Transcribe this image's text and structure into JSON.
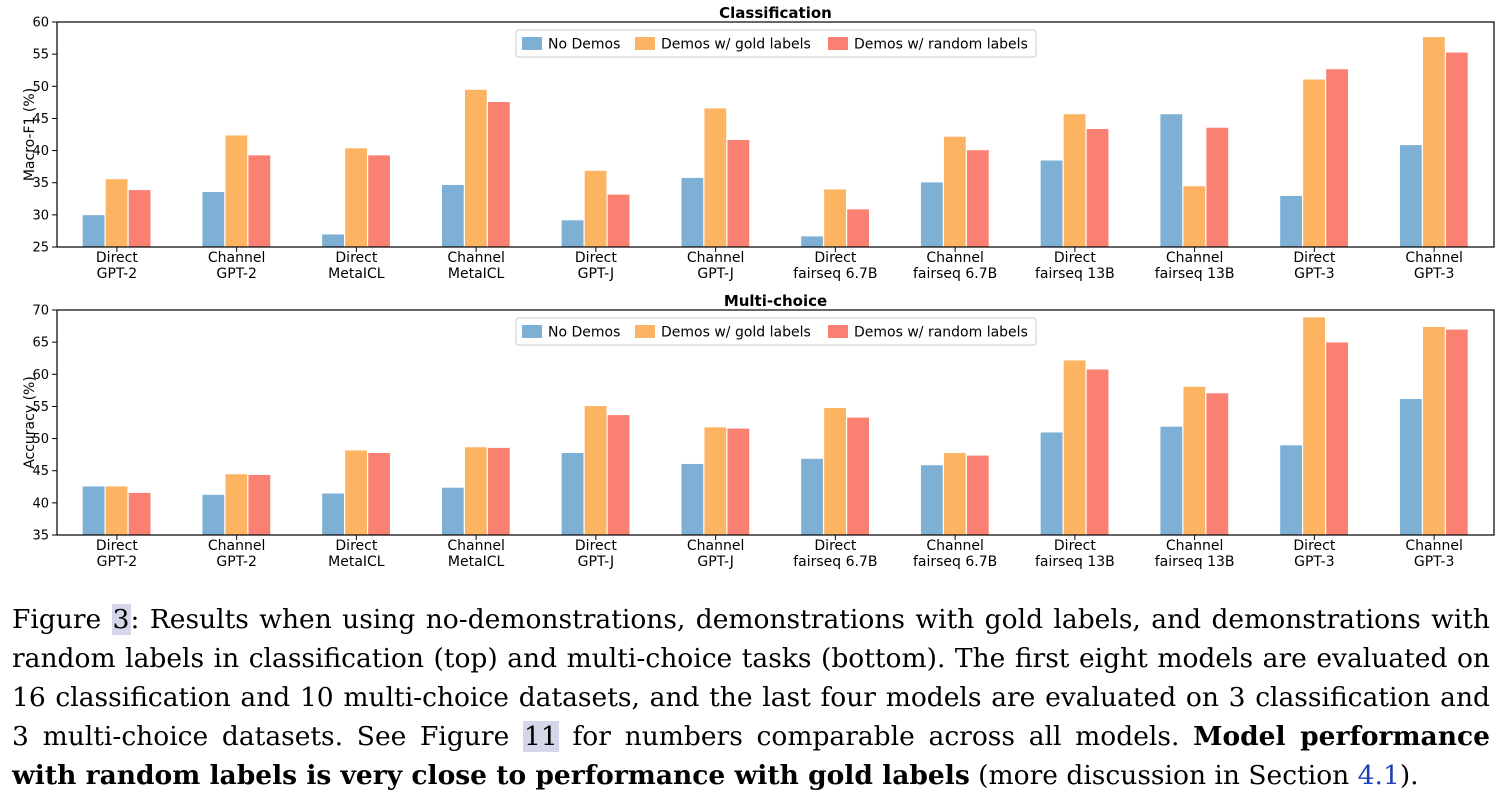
{
  "chart_data": [
    {
      "type": "bar",
      "title": "Classification",
      "ylabel": "Macro-F1 (%)",
      "ylim": [
        25,
        60
      ],
      "yticks": [
        25,
        30,
        35,
        40,
        45,
        50,
        55,
        60
      ],
      "legend_position": "top-center",
      "categories": [
        [
          "Direct",
          "GPT-2"
        ],
        [
          "Channel",
          "GPT-2"
        ],
        [
          "Direct",
          "MetaICL"
        ],
        [
          "Channel",
          "MetaICL"
        ],
        [
          "Direct",
          "GPT-J"
        ],
        [
          "Channel",
          "GPT-J"
        ],
        [
          "Direct",
          "fairseq 6.7B"
        ],
        [
          "Channel",
          "fairseq 6.7B"
        ],
        [
          "Direct",
          "fairseq 13B"
        ],
        [
          "Channel",
          "fairseq 13B"
        ],
        [
          "Direct",
          "GPT-3"
        ],
        [
          "Channel",
          "GPT-3"
        ]
      ],
      "series": [
        {
          "name": "No Demos",
          "color": "#7eb0d5",
          "values": [
            30.0,
            33.6,
            27.0,
            34.7,
            29.2,
            35.8,
            26.7,
            35.1,
            38.5,
            45.7,
            33.0,
            40.9
          ]
        },
        {
          "name": "Demos w/ gold labels",
          "color": "#fdb462",
          "values": [
            35.6,
            42.4,
            40.4,
            49.5,
            36.9,
            46.6,
            34.0,
            42.2,
            45.7,
            34.5,
            51.1,
            57.7
          ]
        },
        {
          "name": "Demos w/ random labels",
          "color": "#fa8072",
          "values": [
            33.9,
            39.3,
            39.3,
            47.6,
            33.2,
            41.7,
            30.9,
            40.1,
            43.4,
            43.6,
            52.7,
            55.3
          ]
        }
      ]
    },
    {
      "type": "bar",
      "title": "Multi-choice",
      "ylabel": "Accuracy (%)",
      "ylim": [
        35,
        70
      ],
      "yticks": [
        35,
        40,
        45,
        50,
        55,
        60,
        65,
        70
      ],
      "legend_position": "top-center",
      "categories": [
        [
          "Direct",
          "GPT-2"
        ],
        [
          "Channel",
          "GPT-2"
        ],
        [
          "Direct",
          "MetaICL"
        ],
        [
          "Channel",
          "MetaICL"
        ],
        [
          "Direct",
          "GPT-J"
        ],
        [
          "Channel",
          "GPT-J"
        ],
        [
          "Direct",
          "fairseq 6.7B"
        ],
        [
          "Channel",
          "fairseq 6.7B"
        ],
        [
          "Direct",
          "fairseq 13B"
        ],
        [
          "Channel",
          "fairseq 13B"
        ],
        [
          "Direct",
          "GPT-3"
        ],
        [
          "Channel",
          "GPT-3"
        ]
      ],
      "series": [
        {
          "name": "No Demos",
          "color": "#7eb0d5",
          "values": [
            42.6,
            41.3,
            41.5,
            42.4,
            47.8,
            46.1,
            46.9,
            45.9,
            51.0,
            51.9,
            49.0,
            56.2
          ]
        },
        {
          "name": "Demos w/ gold labels",
          "color": "#fdb462",
          "values": [
            42.6,
            44.5,
            48.2,
            48.7,
            55.1,
            51.8,
            54.8,
            47.8,
            62.2,
            58.1,
            68.9,
            67.4
          ]
        },
        {
          "name": "Demos w/ random labels",
          "color": "#fa8072",
          "values": [
            41.6,
            44.4,
            47.8,
            48.6,
            53.7,
            51.6,
            53.3,
            47.4,
            60.8,
            57.1,
            65.0,
            67.0
          ]
        }
      ]
    }
  ],
  "caption": {
    "prefix": "Figure ",
    "fig_ref": "3",
    "part1": ": Results when using no-demonstrations, demonstrations with gold labels, and demonstrations with random labels in classification (top) and multi-choice tasks (bottom).  The first eight models are evaluated on 16 classification and 10 multi-choice datasets, and the last four models are evaluated on 3 classification and 3 multi-choice datasets.  See Figure ",
    "fig_ref2": "11",
    "part2": " for numbers comparable across all models.  ",
    "bold": "Model performance with random labels is very close to performance with gold labels",
    "part3": " (more discussion in Section ",
    "sec_ref": "4.1",
    "part4": ")."
  }
}
